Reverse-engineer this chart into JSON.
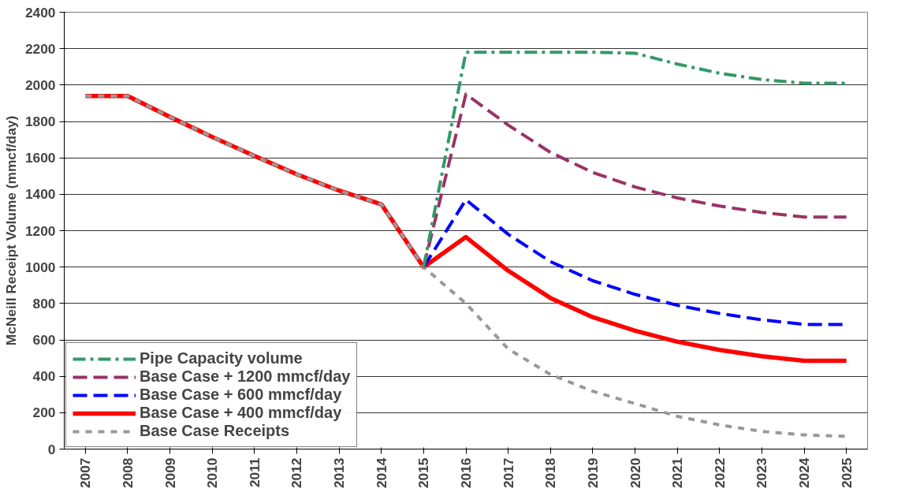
{
  "chart_data": {
    "type": "line",
    "ylabel": "McNeill Receipt Volume (mmcf/day)",
    "categories": [
      "2007",
      "2008",
      "2009",
      "2010",
      "2011",
      "2012",
      "2013",
      "2014",
      "2015",
      "2016",
      "2017",
      "2018",
      "2019",
      "2020",
      "2021",
      "2022",
      "2023",
      "2024",
      "2025"
    ],
    "series": [
      {
        "name": "Pipe Capacity volume",
        "color": "#339966",
        "line_style": "dashdot",
        "values": [
          null,
          null,
          null,
          null,
          null,
          null,
          null,
          null,
          1000,
          2180,
          2180,
          2180,
          2180,
          2175,
          2115,
          2065,
          2030,
          2010,
          2010
        ]
      },
      {
        "name": "Base Case + 1200 mmcf/day",
        "color": "#993366",
        "line_style": "dashed",
        "values": [
          null,
          null,
          null,
          null,
          null,
          null,
          null,
          null,
          1000,
          1950,
          1780,
          1630,
          1520,
          1440,
          1380,
          1335,
          1300,
          1275,
          1275
        ]
      },
      {
        "name": "Base Case + 600 mmcf/day",
        "color": "#0000ff",
        "line_style": "dashed",
        "values": [
          null,
          null,
          null,
          null,
          null,
          null,
          null,
          null,
          1000,
          1370,
          1180,
          1030,
          925,
          850,
          790,
          745,
          710,
          685,
          685
        ]
      },
      {
        "name": "Base Case + 400 mmcf/day",
        "color": "#ff0000",
        "line_style": "solid",
        "values": [
          1940,
          1940,
          1825,
          1715,
          1610,
          1510,
          1420,
          1345,
          1000,
          1165,
          980,
          830,
          725,
          650,
          590,
          545,
          510,
          485,
          485
        ]
      },
      {
        "name": "Base Case Receipts",
        "color": "#999999",
        "line_style": "dotted",
        "values": [
          1940,
          1940,
          1825,
          1715,
          1610,
          1510,
          1420,
          1345,
          1000,
          800,
          550,
          410,
          318,
          250,
          180,
          133,
          97,
          78,
          70
        ]
      }
    ],
    "ylim": [
      0,
      2400
    ],
    "yticks": [
      0,
      200,
      400,
      600,
      800,
      1000,
      1200,
      1400,
      1600,
      1800,
      2000,
      2200,
      2400
    ],
    "grid": "y",
    "legend": "bottom left",
    "marker": "none"
  }
}
